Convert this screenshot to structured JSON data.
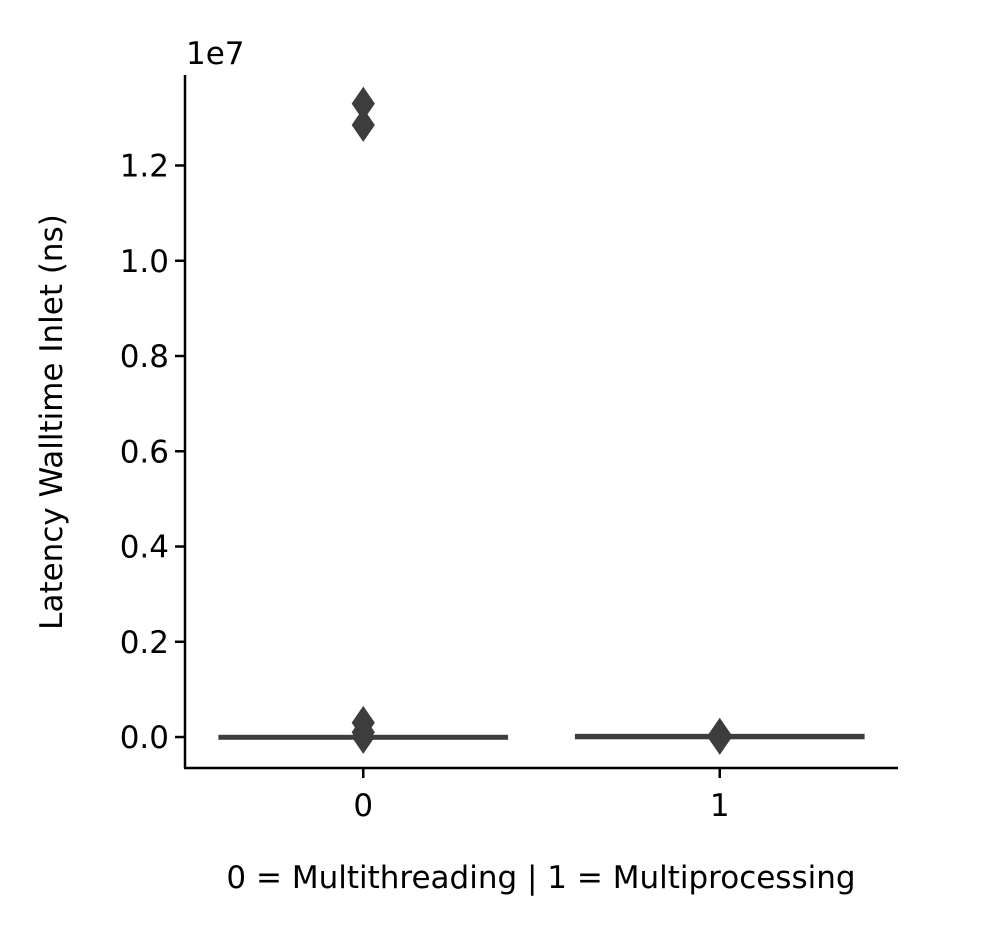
{
  "chart_data": {
    "type": "box",
    "title": "",
    "xlabel": "0 = Multithreading | 1 = Multiprocessing",
    "ylabel": "Latency Walltime Inlet (ns)",
    "y_offset_label": "1e7",
    "y_scale_factor": 10000000,
    "categories": [
      "0",
      "1"
    ],
    "ylim": [
      -0.065,
      1.39
    ],
    "yticks": [
      0.0,
      0.2,
      0.4,
      0.6,
      0.8,
      1.0,
      1.2
    ],
    "ytick_labels": [
      "0.0",
      "0.2",
      "0.4",
      "0.6",
      "0.8",
      "1.0",
      "1.2"
    ],
    "grid": false,
    "legend": "none",
    "colors": {
      "box": "#3d3d3d",
      "axis": "#000000"
    },
    "boxes": [
      {
        "category": "0",
        "whisker_low": 0.0,
        "q1": 0.0,
        "median": 0.0,
        "q3": 0.0,
        "whisker_high": 0.0,
        "outliers": [
          1.33,
          1.285,
          0.03,
          0.01,
          0.0
        ]
      },
      {
        "category": "1",
        "whisker_low": 0.0,
        "q1": 0.0,
        "median": 0.0,
        "q3": 0.002,
        "whisker_high": 0.002,
        "outliers": [
          0.005,
          0.0,
          -0.002
        ]
      }
    ]
  }
}
